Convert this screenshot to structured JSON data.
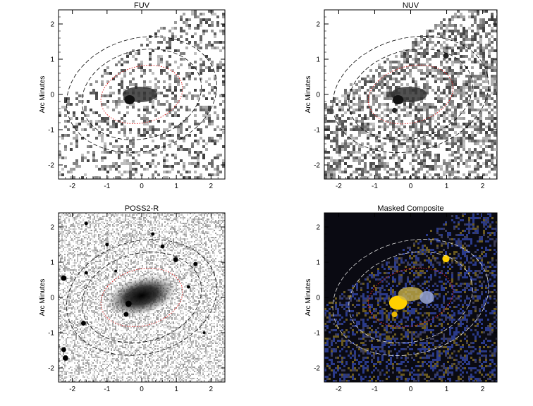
{
  "figure": {
    "panels": [
      {
        "id": "fuv",
        "title": "FUV",
        "ylabel": "Arc Minutes",
        "style": "uv-noise",
        "ink": "#333333",
        "density": 0.32
      },
      {
        "id": "nuv",
        "title": "NUV",
        "ylabel": "Arc Minutes",
        "style": "uv-noise",
        "ink": "#3a3a3a",
        "density": 0.55
      },
      {
        "id": "poss",
        "title": "POSS2-R",
        "ylabel": "Arc Minutes",
        "style": "optical",
        "ink": "#222222",
        "density": 0.5
      },
      {
        "id": "comp",
        "title": "Masked Composite",
        "ylabel": "Arc Minutes",
        "style": "composite",
        "ink": "#f2c200",
        "density": 0.4
      }
    ],
    "chart_data": [
      {
        "type": "image",
        "title": "FUV",
        "ylabel": "Arc Minutes",
        "xlim": [
          -2.4,
          2.4
        ],
        "ylim": [
          -2.4,
          2.4
        ],
        "xticks": [
          "-2",
          "-1",
          "0",
          "1",
          "2"
        ],
        "yticks": [
          "-2",
          "-1",
          "0",
          "1",
          "2"
        ]
      },
      {
        "type": "image",
        "title": "NUV",
        "ylabel": "Arc Minutes",
        "xlim": [
          -2.4,
          2.4
        ],
        "ylim": [
          -2.4,
          2.4
        ],
        "xticks": [
          "-2",
          "-1",
          "0",
          "1",
          "2"
        ],
        "yticks": [
          "-2",
          "-1",
          "0",
          "1",
          "2"
        ]
      },
      {
        "type": "image",
        "title": "POSS2-R",
        "ylabel": "Arc Minutes",
        "xlim": [
          -2.4,
          2.4
        ],
        "ylim": [
          -2.4,
          2.4
        ],
        "xticks": [
          "-2",
          "-1",
          "0",
          "1",
          "2"
        ],
        "yticks": [
          "-2",
          "-1",
          "0",
          "1",
          "2"
        ]
      },
      {
        "type": "image",
        "title": "Masked Composite",
        "ylabel": "Arc Minutes",
        "xlim": [
          -2.4,
          2.4
        ],
        "ylim": [
          -2.4,
          2.4
        ],
        "xticks": [
          "-2",
          "-1",
          "0",
          "1",
          "2"
        ],
        "yticks": [
          "-2",
          "-1",
          "0",
          "1",
          "2"
        ]
      }
    ],
    "ellipses": {
      "inner": {
        "cx": 0.0,
        "cy": 0.0,
        "rx": 1.2,
        "ry": 0.8,
        "angle_deg": -15,
        "color": "#e02020"
      },
      "sky_inner": {
        "cx": 0.0,
        "cy": 0.0,
        "rx": 1.75,
        "ry": 1.25,
        "angle_deg": -15
      },
      "sky_outer": {
        "cx": 0.0,
        "cy": 0.0,
        "rx": 2.2,
        "ry": 1.6,
        "angle_deg": -15
      }
    },
    "galaxy": {
      "cx": 0.0,
      "cy": 0.05,
      "rx": 0.55,
      "ry": 0.28,
      "angle_deg": -15
    },
    "stars": [
      {
        "x": -0.38,
        "y": -0.18,
        "r": 0.09
      },
      {
        "x": -0.45,
        "y": -0.48,
        "r": 0.07
      },
      {
        "x": 0.98,
        "y": 1.07,
        "r": 0.07
      },
      {
        "x": -1.68,
        "y": -0.73,
        "r": 0.07
      },
      {
        "x": -2.2,
        "y": -1.72,
        "r": 0.08
      },
      {
        "x": -2.25,
        "y": -1.48,
        "r": 0.07
      },
      {
        "x": 0.6,
        "y": 1.45,
        "r": 0.06
      },
      {
        "x": -1.0,
        "y": 1.5,
        "r": 0.05
      },
      {
        "x": -1.6,
        "y": 0.7,
        "r": 0.05
      },
      {
        "x": 1.35,
        "y": 0.3,
        "r": 0.05
      },
      {
        "x": -0.75,
        "y": 0.75,
        "r": 0.04
      },
      {
        "x": 1.55,
        "y": 0.95,
        "r": 0.06
      },
      {
        "x": -2.25,
        "y": 0.55,
        "r": 0.08
      },
      {
        "x": 0.32,
        "y": 1.8,
        "r": 0.05
      },
      {
        "x": -1.6,
        "y": 2.1,
        "r": 0.05
      },
      {
        "x": 1.8,
        "y": -1.0,
        "r": 0.04
      }
    ]
  }
}
